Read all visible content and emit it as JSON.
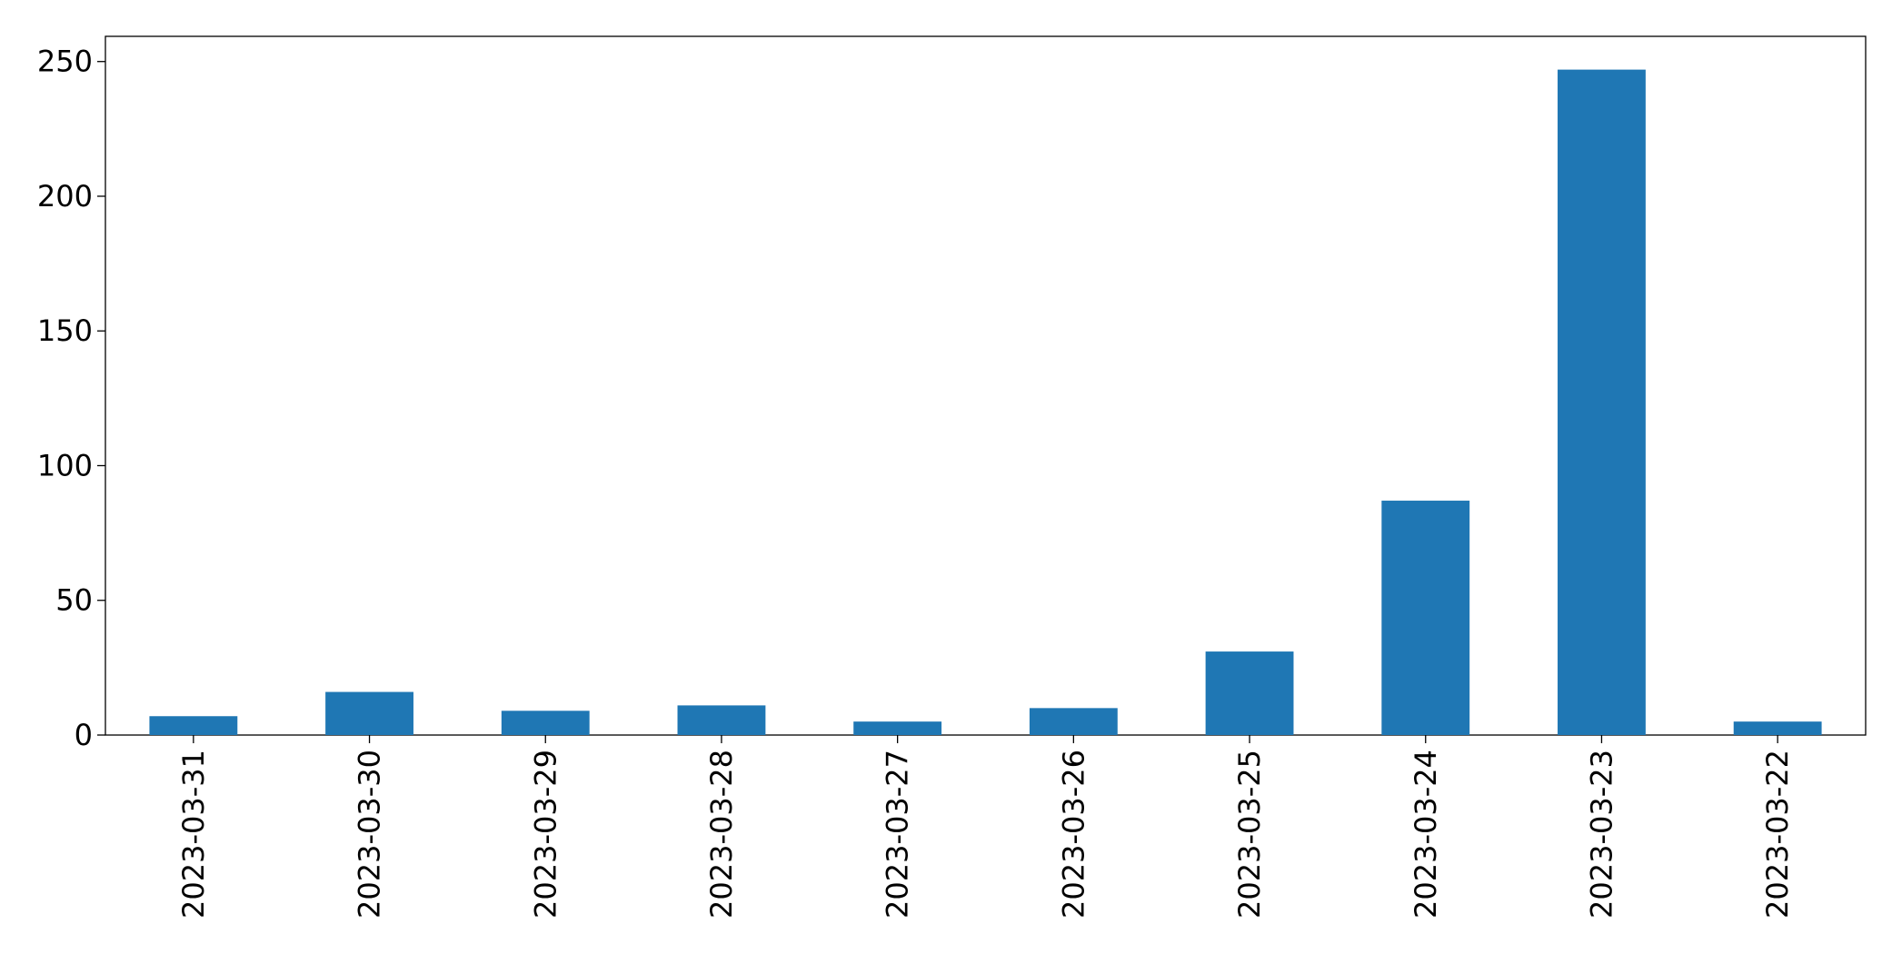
{
  "chart_data": {
    "type": "bar",
    "categories": [
      "2023-03-31",
      "2023-03-30",
      "2023-03-29",
      "2023-03-28",
      "2023-03-27",
      "2023-03-26",
      "2023-03-25",
      "2023-03-24",
      "2023-03-23",
      "2023-03-22"
    ],
    "values": [
      7,
      16,
      9,
      11,
      5,
      10,
      31,
      87,
      247,
      5
    ],
    "color": "#1f77b4",
    "ylim": [
      0,
      259.35
    ],
    "yticks": [
      0,
      50,
      100,
      150,
      200,
      250
    ],
    "grid": false
  }
}
